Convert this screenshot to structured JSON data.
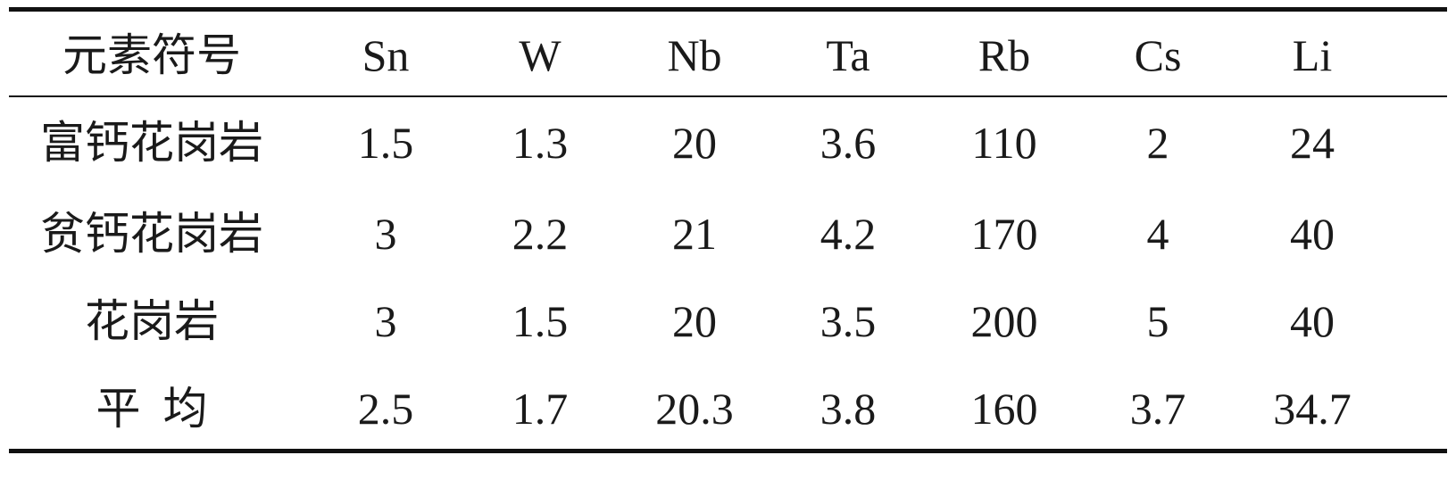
{
  "table": {
    "header": [
      "元素符号",
      "Sn",
      "W",
      "Nb",
      "Ta",
      "Rb",
      "Cs",
      "Li"
    ],
    "rows": [
      [
        "富钙花岗岩",
        "1.5",
        "1.3",
        "20",
        "3.6",
        "110",
        "2",
        "24"
      ],
      [
        "贫钙花岗岩",
        "3",
        "2.2",
        "21",
        "4.2",
        "170",
        "4",
        "40"
      ],
      [
        "花岗岩",
        "3",
        "1.5",
        "20",
        "3.5",
        "200",
        "5",
        "40"
      ],
      [
        "平  均",
        "2.5",
        "1.7",
        "20.3",
        "3.8",
        "160",
        "3.7",
        "34.7"
      ]
    ]
  }
}
